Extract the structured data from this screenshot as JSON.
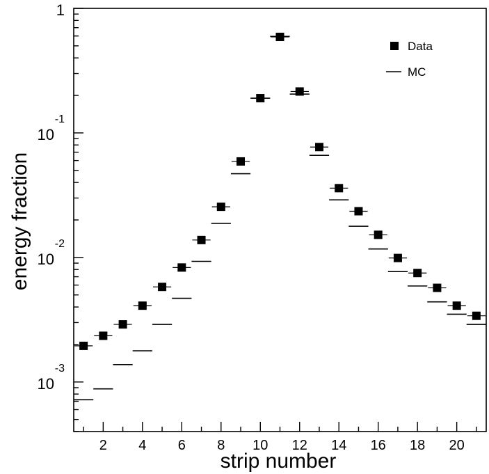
{
  "chart_data": {
    "type": "scatter",
    "xlabel": "strip number",
    "ylabel": "energy fraction",
    "xlim": [
      0.5,
      21.5
    ],
    "ylim": [
      0.0004,
      1.0
    ],
    "yscale": "log",
    "grid": false,
    "legend_position": "top-right",
    "x_tick_labels": [
      "2",
      "4",
      "6",
      "8",
      "10",
      "12",
      "14",
      "16",
      "18",
      "20"
    ],
    "y_tick_labels": [
      {
        "base": "1",
        "exp": ""
      },
      {
        "base": "10",
        "exp": "-1"
      },
      {
        "base": "10",
        "exp": "-2"
      },
      {
        "base": "10",
        "exp": "-3"
      }
    ],
    "legend": [
      {
        "label": "Data",
        "marker": "square"
      },
      {
        "label": "MC",
        "marker": "line"
      }
    ],
    "x": [
      1,
      2,
      3,
      4,
      5,
      6,
      7,
      8,
      9,
      10,
      11,
      12,
      13,
      14,
      15,
      16,
      17,
      18,
      19,
      20,
      21
    ],
    "series": [
      {
        "name": "Data",
        "values": [
          0.00195,
          0.00235,
          0.0029,
          0.0041,
          0.0058,
          0.0083,
          0.0138,
          0.0255,
          0.059,
          0.19,
          0.59,
          0.215,
          0.077,
          0.036,
          0.0235,
          0.0152,
          0.0099,
          0.0075,
          0.0057,
          0.0041,
          0.0034
        ]
      },
      {
        "name": "MC",
        "values": [
          0.00072,
          0.00088,
          0.00138,
          0.00178,
          0.0029,
          0.0047,
          0.0093,
          0.0188,
          0.047,
          0.19,
          0.595,
          0.205,
          0.066,
          0.029,
          0.0178,
          0.0117,
          0.0077,
          0.0059,
          0.0044,
          0.0035,
          0.0029
        ]
      }
    ]
  }
}
